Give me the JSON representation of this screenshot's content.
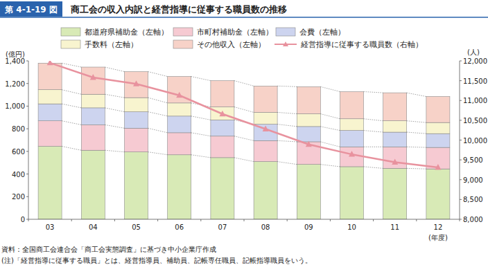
{
  "chart_data": {
    "type": "bar",
    "stacked": true,
    "grid": false,
    "figure_label": "第 4-1-19 図",
    "title": "商工会の収入内訳と経営指導に従事する職員数の推移",
    "y_label": "(億円)",
    "y2_label": "(人)",
    "x_label": "(年度)",
    "source": "資料：全国商工会連合会「商工会実態調査」に基づき中小企業庁作成",
    "note": "(注)「経営指導に従事する職員」とは、経営指導員、補助員、記帳専任職員、記帳指導職員をいう。",
    "categories": [
      "03",
      "04",
      "05",
      "06",
      "07",
      "08",
      "09",
      "10",
      "11",
      "12"
    ],
    "ylim": [
      0,
      1400
    ],
    "yticks": [
      0,
      200,
      400,
      600,
      800,
      {
        "value": 1000,
        "label": "1,000"
      },
      {
        "value": 1200,
        "label": "1,200"
      },
      {
        "value": 1400,
        "label": "1,400"
      }
    ],
    "y2lim": [
      8000,
      12000
    ],
    "y2ticks": [
      {
        "value": 8000,
        "label": "8,000"
      },
      {
        "value": 8500,
        "label": "8,500"
      },
      {
        "value": 9000,
        "label": "9,000"
      },
      {
        "value": 9500,
        "label": "9,500"
      },
      {
        "value": 10000,
        "label": "10,000"
      },
      {
        "value": 10500,
        "label": "10,500"
      },
      {
        "value": 11000,
        "label": "11,000"
      },
      {
        "value": 11500,
        "label": "11,500"
      },
      {
        "value": 12000,
        "label": "12,000"
      }
    ],
    "series": [
      {
        "name": "都道府県補助金（左軸）",
        "type": "bar",
        "color": "#d8eab6",
        "values": [
          645,
          610,
          595,
          570,
          545,
          510,
          485,
          465,
          450,
          445
        ]
      },
      {
        "name": "市町村補助金（左軸）",
        "type": "bar",
        "color": "#f6cad2",
        "values": [
          225,
          225,
          210,
          195,
          190,
          185,
          200,
          175,
          190,
          190
        ]
      },
      {
        "name": "会費（左軸）",
        "type": "bar",
        "color": "#cdd4ef",
        "values": [
          150,
          150,
          145,
          147,
          143,
          145,
          135,
          145,
          130,
          122
        ]
      },
      {
        "name": "手数料（左軸）",
        "type": "bar",
        "color": "#f8f4cf",
        "values": [
          125,
          120,
          125,
          116,
          115,
          105,
          112,
          103,
          100,
          98
        ]
      },
      {
        "name": "その他収入（左軸）",
        "type": "bar",
        "color": "#f7d2c8",
        "values": [
          235,
          240,
          230,
          234,
          232,
          233,
          240,
          240,
          248,
          230
        ]
      },
      {
        "name": "経営指導に従事する職員数（右軸）",
        "type": "line",
        "axis": "y2",
        "color": "#e8929e",
        "marker": "triangle",
        "line_style": "solid",
        "values": [
          11950,
          11580,
          11420,
          11130,
          10660,
          10280,
          9890,
          9640,
          9440,
          9310
        ]
      }
    ]
  }
}
